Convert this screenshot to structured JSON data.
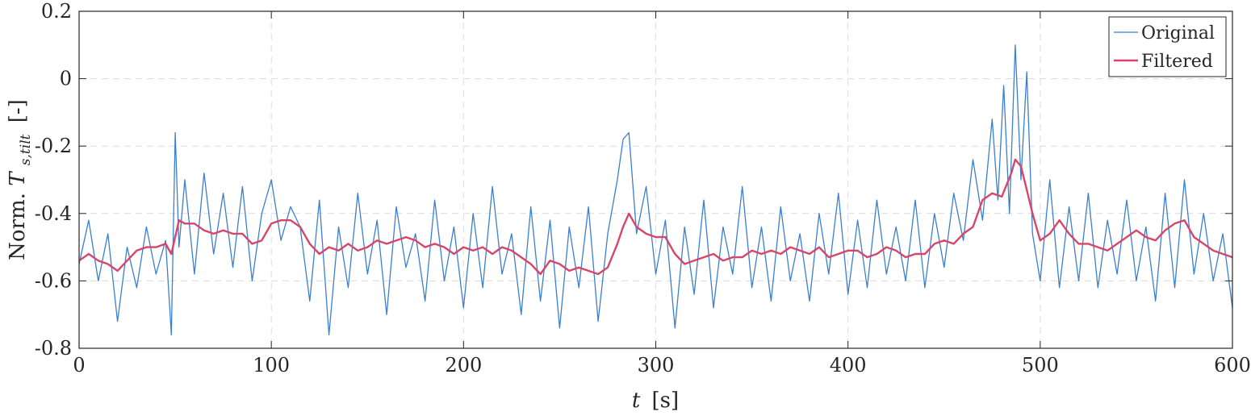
{
  "chart_data": {
    "type": "line",
    "title": "",
    "xlabel": {
      "var": "t",
      "unit": "[s]"
    },
    "ylabel": {
      "prefix": "Norm. ",
      "var": "T",
      "subscript": "s,tilt",
      "unit": "[-]"
    },
    "xlim": [
      0,
      600
    ],
    "ylim": [
      -0.8,
      0.2
    ],
    "x_ticks": [
      "0",
      "100",
      "200",
      "300",
      "400",
      "500",
      "600"
    ],
    "y_ticks": [
      "-0.8",
      "-0.6",
      "-0.4",
      "-0.2",
      "0",
      "0.2"
    ],
    "grid": true,
    "legend_position": "top-right",
    "colors": {
      "original": "#3a7fd0",
      "filtered": "#d6466b",
      "grid": "#dcdcdc",
      "axes": "#262626"
    },
    "series": [
      {
        "name": "Original",
        "x": [
          0,
          5,
          10,
          15,
          20,
          25,
          30,
          35,
          40,
          45,
          48,
          50,
          52,
          55,
          60,
          65,
          70,
          75,
          80,
          85,
          90,
          95,
          100,
          105,
          110,
          115,
          120,
          125,
          130,
          135,
          140,
          145,
          150,
          155,
          160,
          165,
          170,
          175,
          180,
          185,
          190,
          195,
          200,
          205,
          210,
          215,
          220,
          225,
          230,
          235,
          240,
          245,
          250,
          255,
          260,
          265,
          270,
          275,
          280,
          283,
          286,
          290,
          295,
          300,
          305,
          310,
          315,
          320,
          325,
          330,
          335,
          340,
          345,
          350,
          355,
          360,
          365,
          370,
          375,
          380,
          385,
          390,
          395,
          400,
          405,
          410,
          415,
          420,
          425,
          430,
          435,
          440,
          445,
          450,
          455,
          460,
          465,
          470,
          475,
          478,
          481,
          484,
          487,
          490,
          493,
          496,
          500,
          505,
          510,
          515,
          520,
          525,
          530,
          535,
          540,
          545,
          550,
          555,
          560,
          565,
          570,
          575,
          580,
          585,
          590,
          595,
          600
        ],
        "y": [
          -0.55,
          -0.42,
          -0.6,
          -0.46,
          -0.72,
          -0.5,
          -0.62,
          -0.44,
          -0.58,
          -0.48,
          -0.76,
          -0.16,
          -0.5,
          -0.3,
          -0.58,
          -0.28,
          -0.52,
          -0.34,
          -0.56,
          -0.32,
          -0.6,
          -0.4,
          -0.3,
          -0.48,
          -0.38,
          -0.44,
          -0.66,
          -0.36,
          -0.76,
          -0.44,
          -0.62,
          -0.34,
          -0.58,
          -0.42,
          -0.7,
          -0.38,
          -0.56,
          -0.46,
          -0.66,
          -0.36,
          -0.6,
          -0.44,
          -0.68,
          -0.4,
          -0.62,
          -0.32,
          -0.58,
          -0.46,
          -0.7,
          -0.38,
          -0.66,
          -0.42,
          -0.74,
          -0.44,
          -0.62,
          -0.38,
          -0.72,
          -0.46,
          -0.3,
          -0.18,
          -0.16,
          -0.46,
          -0.32,
          -0.58,
          -0.42,
          -0.74,
          -0.44,
          -0.64,
          -0.36,
          -0.68,
          -0.44,
          -0.58,
          -0.32,
          -0.62,
          -0.44,
          -0.66,
          -0.38,
          -0.6,
          -0.46,
          -0.66,
          -0.4,
          -0.58,
          -0.34,
          -0.64,
          -0.42,
          -0.62,
          -0.36,
          -0.58,
          -0.44,
          -0.6,
          -0.36,
          -0.62,
          -0.4,
          -0.56,
          -0.34,
          -0.48,
          -0.24,
          -0.42,
          -0.12,
          -0.36,
          -0.02,
          -0.4,
          0.1,
          -0.3,
          0.02,
          -0.46,
          -0.6,
          -0.3,
          -0.62,
          -0.38,
          -0.6,
          -0.34,
          -0.62,
          -0.42,
          -0.58,
          -0.36,
          -0.6,
          -0.44,
          -0.66,
          -0.34,
          -0.62,
          -0.3,
          -0.58,
          -0.4,
          -0.6,
          -0.46,
          -0.68
        ]
      },
      {
        "name": "Filtered",
        "x": [
          0,
          5,
          10,
          15,
          20,
          25,
          30,
          35,
          40,
          45,
          48,
          52,
          55,
          60,
          65,
          70,
          75,
          80,
          85,
          90,
          95,
          100,
          105,
          110,
          115,
          120,
          125,
          130,
          135,
          140,
          145,
          150,
          155,
          160,
          165,
          170,
          175,
          180,
          185,
          190,
          195,
          200,
          205,
          210,
          215,
          220,
          225,
          230,
          235,
          240,
          245,
          250,
          255,
          260,
          265,
          270,
          275,
          280,
          283,
          286,
          290,
          295,
          300,
          305,
          310,
          315,
          320,
          325,
          330,
          335,
          340,
          345,
          350,
          355,
          360,
          365,
          370,
          375,
          380,
          385,
          390,
          395,
          400,
          405,
          410,
          415,
          420,
          425,
          430,
          435,
          440,
          445,
          450,
          455,
          460,
          465,
          470,
          475,
          480,
          485,
          487,
          490,
          493,
          496,
          500,
          505,
          510,
          515,
          520,
          525,
          530,
          535,
          540,
          545,
          550,
          555,
          560,
          565,
          570,
          575,
          580,
          585,
          590,
          595,
          600
        ],
        "y": [
          -0.54,
          -0.52,
          -0.54,
          -0.55,
          -0.57,
          -0.54,
          -0.51,
          -0.5,
          -0.5,
          -0.49,
          -0.52,
          -0.42,
          -0.43,
          -0.43,
          -0.45,
          -0.46,
          -0.45,
          -0.46,
          -0.46,
          -0.49,
          -0.48,
          -0.43,
          -0.42,
          -0.42,
          -0.44,
          -0.49,
          -0.52,
          -0.5,
          -0.51,
          -0.49,
          -0.51,
          -0.5,
          -0.48,
          -0.49,
          -0.48,
          -0.47,
          -0.48,
          -0.5,
          -0.49,
          -0.5,
          -0.52,
          -0.5,
          -0.51,
          -0.5,
          -0.52,
          -0.5,
          -0.51,
          -0.53,
          -0.55,
          -0.58,
          -0.54,
          -0.55,
          -0.57,
          -0.56,
          -0.57,
          -0.58,
          -0.56,
          -0.49,
          -0.44,
          -0.4,
          -0.44,
          -0.46,
          -0.47,
          -0.47,
          -0.52,
          -0.55,
          -0.54,
          -0.53,
          -0.52,
          -0.54,
          -0.53,
          -0.53,
          -0.51,
          -0.52,
          -0.51,
          -0.52,
          -0.5,
          -0.51,
          -0.52,
          -0.5,
          -0.53,
          -0.52,
          -0.51,
          -0.51,
          -0.53,
          -0.52,
          -0.5,
          -0.51,
          -0.53,
          -0.52,
          -0.52,
          -0.49,
          -0.48,
          -0.49,
          -0.46,
          -0.44,
          -0.36,
          -0.34,
          -0.35,
          -0.28,
          -0.24,
          -0.26,
          -0.33,
          -0.4,
          -0.48,
          -0.46,
          -0.42,
          -0.46,
          -0.49,
          -0.49,
          -0.5,
          -0.51,
          -0.49,
          -0.47,
          -0.45,
          -0.47,
          -0.48,
          -0.45,
          -0.43,
          -0.42,
          -0.47,
          -0.49,
          -0.51,
          -0.52,
          -0.53
        ]
      }
    ]
  }
}
